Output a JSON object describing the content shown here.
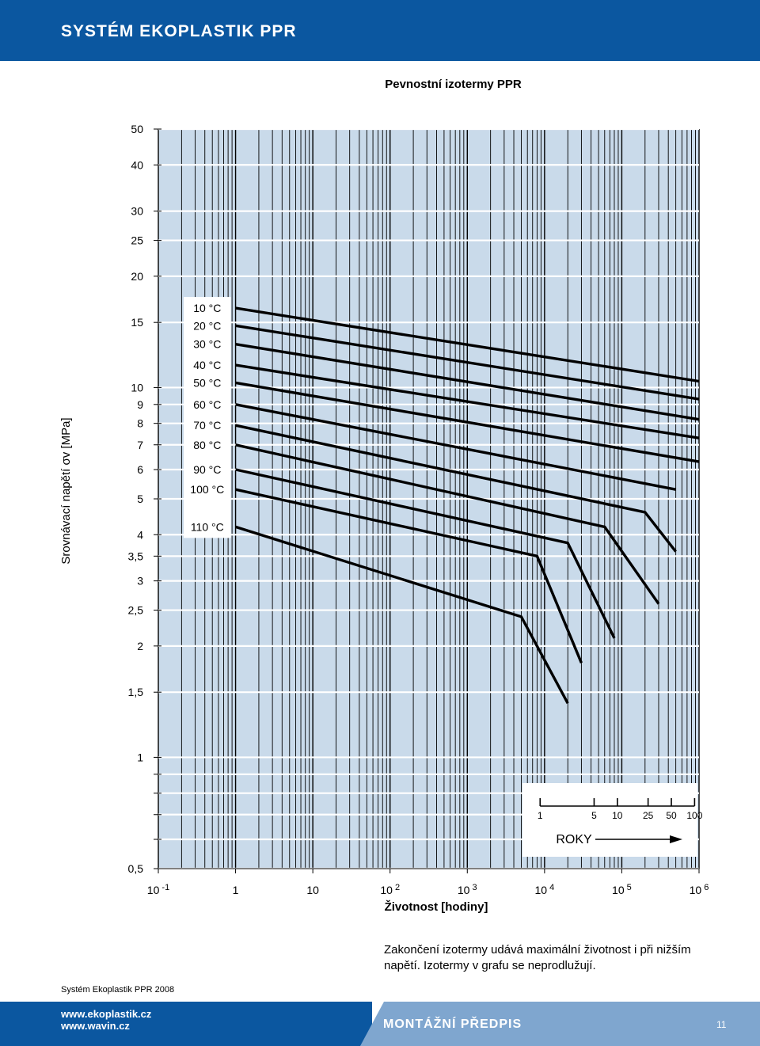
{
  "header": {
    "title": "SYSTÉM EKOPLASTIK PPR"
  },
  "page_title": "Pevnostní izotermy PPR",
  "note": "Zakončení izotermy udává maximální životnost i při nižším napětí. Izotermy v grafu se neprodlužují.",
  "footer": {
    "label": "Systém Ekoplastik PPR 2008",
    "url1": "www.ekoplastik.cz",
    "url2": "www.wavin.cz",
    "section": "MONTÁŽNÍ PŘEDPIS",
    "page_number": "11"
  },
  "colors": {
    "brand_blue": "#0b57a0",
    "light_blue": "#7fa6cf",
    "plot_bg": "#c9daea"
  },
  "chart_data": {
    "type": "line",
    "title": "Pevnostní izotermy PPR",
    "xlabel": "Životnost [hodiny]",
    "ylabel": "Srovnávací napětí σv [MPa]",
    "x_scale": "log",
    "y_scale": "log",
    "xlim": [
      0.1,
      1000000
    ],
    "ylim": [
      0.5,
      50
    ],
    "x_ticks": [
      {
        "value": 0.1,
        "base": "10",
        "exp": "-1"
      },
      {
        "value": 1,
        "base": "1",
        "exp": ""
      },
      {
        "value": 10,
        "base": "10",
        "exp": ""
      },
      {
        "value": 100,
        "base": "10",
        "exp": "2"
      },
      {
        "value": 1000,
        "base": "10",
        "exp": "3"
      },
      {
        "value": 10000,
        "base": "10",
        "exp": "4"
      },
      {
        "value": 100000,
        "base": "10",
        "exp": "5"
      },
      {
        "value": 1000000,
        "base": "10",
        "exp": "6"
      }
    ],
    "y_ticks": [
      {
        "value": 50,
        "label": "50"
      },
      {
        "value": 40,
        "label": "40"
      },
      {
        "value": 30,
        "label": "30"
      },
      {
        "value": 25,
        "label": "25"
      },
      {
        "value": 20,
        "label": "20"
      },
      {
        "value": 15,
        "label": "15"
      },
      {
        "value": 10,
        "label": "10"
      },
      {
        "value": 9,
        "label": "9"
      },
      {
        "value": 8,
        "label": "8"
      },
      {
        "value": 7,
        "label": "7"
      },
      {
        "value": 6,
        "label": "6"
      },
      {
        "value": 5,
        "label": "5"
      },
      {
        "value": 4,
        "label": "4"
      },
      {
        "value": 3.5,
        "label": "3,5"
      },
      {
        "value": 3,
        "label": "3"
      },
      {
        "value": 2.5,
        "label": "2,5"
      },
      {
        "value": 2,
        "label": "2"
      },
      {
        "value": 1.5,
        "label": "1,5"
      },
      {
        "value": 1,
        "label": "1"
      },
      {
        "value": 0.5,
        "label": "0,5"
      }
    ],
    "y_minor_ticks": [
      0.9,
      0.8,
      0.7,
      0.6
    ],
    "series": [
      {
        "name": "10 °C",
        "points": [
          [
            1,
            16.4
          ],
          [
            1000000,
            10.4
          ]
        ]
      },
      {
        "name": "20 °C",
        "points": [
          [
            1,
            14.7
          ],
          [
            1000000,
            9.3
          ]
        ]
      },
      {
        "name": "30 °C",
        "points": [
          [
            1,
            13.1
          ],
          [
            1000000,
            8.2
          ]
        ]
      },
      {
        "name": "40 °C",
        "points": [
          [
            1,
            11.5
          ],
          [
            1000000,
            7.3
          ]
        ]
      },
      {
        "name": "50 °C",
        "points": [
          [
            1,
            10.3
          ],
          [
            1000000,
            6.3
          ]
        ]
      },
      {
        "name": "60 °C",
        "points": [
          [
            1,
            9.0
          ],
          [
            500000,
            5.3
          ]
        ]
      },
      {
        "name": "70 °C",
        "points": [
          [
            1,
            7.9
          ],
          [
            200000,
            4.6
          ],
          [
            500000,
            3.6
          ]
        ]
      },
      {
        "name": "80 °C",
        "points": [
          [
            1,
            7.0
          ],
          [
            60000,
            4.2
          ],
          [
            300000,
            2.6
          ]
        ]
      },
      {
        "name": "90 °C",
        "points": [
          [
            1,
            6.0
          ],
          [
            20000,
            3.8
          ],
          [
            80000,
            2.1
          ]
        ]
      },
      {
        "name": "100 °C",
        "points": [
          [
            1,
            5.3
          ],
          [
            8000,
            3.5
          ],
          [
            30000,
            1.8
          ]
        ]
      },
      {
        "name": "110 °C",
        "points": [
          [
            1,
            4.2
          ],
          [
            5000,
            2.4
          ],
          [
            20000,
            1.4
          ]
        ]
      }
    ],
    "years_inset": {
      "title": "ROKY",
      "ticks": [
        {
          "label": "1",
          "hours": 8760
        },
        {
          "label": "5",
          "hours": 43800
        },
        {
          "label": "10",
          "hours": 87600
        },
        {
          "label": "25",
          "hours": 219000
        },
        {
          "label": "50",
          "hours": 438000
        },
        {
          "label": "100",
          "hours": 876000
        }
      ]
    },
    "grid": true
  }
}
